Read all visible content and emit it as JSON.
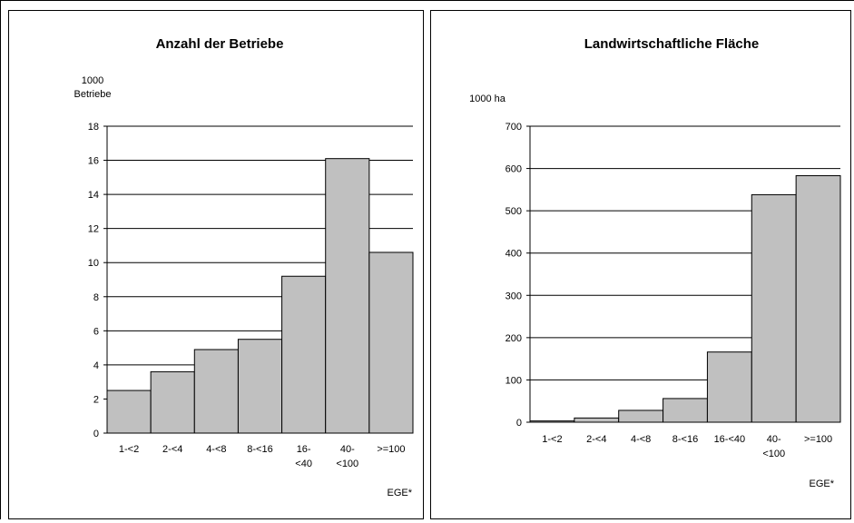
{
  "chart_data": [
    {
      "type": "bar",
      "title": "Anzahl der Betriebe",
      "ylabel_lines": [
        "1000",
        "Betriebe"
      ],
      "xlabel": "EGE*",
      "ylim": [
        0,
        18
      ],
      "yticks": [
        "0",
        "2",
        "4",
        "6",
        "8",
        "10",
        "12",
        "14",
        "16",
        "18"
      ],
      "categories": [
        "1-<2",
        "2-<4",
        "4-<8",
        "8-<16",
        "16-<40",
        "40-<100",
        ">=100"
      ],
      "category_labels": [
        [
          "1-<2"
        ],
        [
          "2-<4"
        ],
        [
          "4-<8"
        ],
        [
          "8-<16"
        ],
        [
          "16-",
          "<40"
        ],
        [
          "40-",
          "<100"
        ],
        [
          ">=100"
        ]
      ],
      "values": [
        2.5,
        3.6,
        4.9,
        5.5,
        9.2,
        16.1,
        10.6
      ],
      "grid": true,
      "bar_color": "#c0c0c0"
    },
    {
      "type": "bar",
      "title": "Landwirtschaftliche Fläche",
      "ylabel_lines": [
        "1000 ha"
      ],
      "xlabel": "EGE*",
      "ylim": [
        0,
        700
      ],
      "yticks": [
        "0",
        "100",
        "200",
        "300",
        "400",
        "500",
        "600",
        "700"
      ],
      "categories": [
        "1-<2",
        "2-<4",
        "4-<8",
        "8-<16",
        "16-<40",
        "40-<100",
        ">=100"
      ],
      "category_labels": [
        [
          "1-<2"
        ],
        [
          "2-<4"
        ],
        [
          "4-<8"
        ],
        [
          "8-<16"
        ],
        [
          "16-<40"
        ],
        [
          "40-",
          "<100"
        ],
        [
          ">=100"
        ]
      ],
      "values": [
        3,
        10,
        28,
        56,
        166,
        538,
        583
      ],
      "grid": true,
      "bar_color": "#c0c0c0"
    }
  ]
}
